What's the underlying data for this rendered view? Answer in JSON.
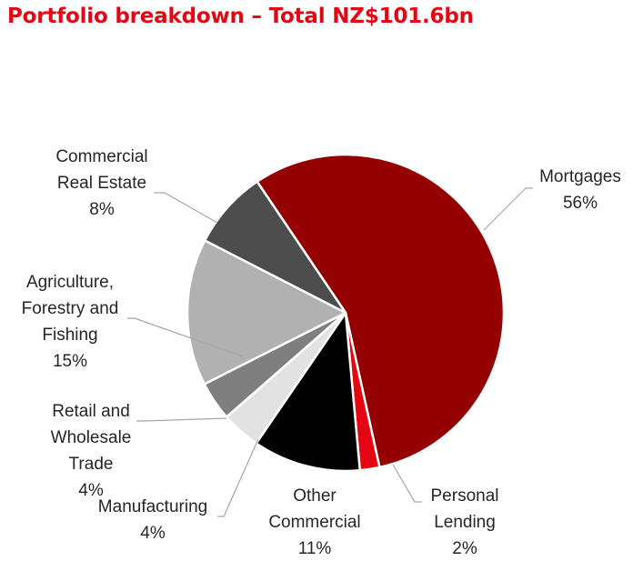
{
  "chart_data": {
    "type": "pie",
    "title": "Portfolio breakdown – Total NZ$101.6bn",
    "title_color": "#e30613",
    "start_angle_deg": -34,
    "direction": "clockwise",
    "slices": [
      {
        "lines": [
          "Mortgages"
        ],
        "value": 56,
        "label": "56%",
        "color": "#940000"
      },
      {
        "lines": [
          "Personal",
          "Lending"
        ],
        "value": 2,
        "label": "2%",
        "color": "#e30613"
      },
      {
        "lines": [
          "Other",
          "Commercial"
        ],
        "value": 11,
        "label": "11%",
        "color": "#000000"
      },
      {
        "lines": [
          "Manufacturing"
        ],
        "value": 4,
        "label": "4%",
        "color": "#e2e2e2"
      },
      {
        "lines": [
          "Retail and",
          "Wholesale",
          "Trade"
        ],
        "value": 4,
        "label": "4%",
        "color": "#7f7f7f"
      },
      {
        "lines": [
          "Agriculture,",
          "Forestry and",
          "Fishing"
        ],
        "value": 15,
        "label": "15%",
        "color": "#b1b1b1"
      },
      {
        "lines": [
          "Commercial",
          "Real Estate"
        ],
        "value": 8,
        "label": "8%",
        "color": "#4d4d4d"
      }
    ],
    "leader_line_color": "#a6a6a6",
    "label_color": "#262626"
  }
}
